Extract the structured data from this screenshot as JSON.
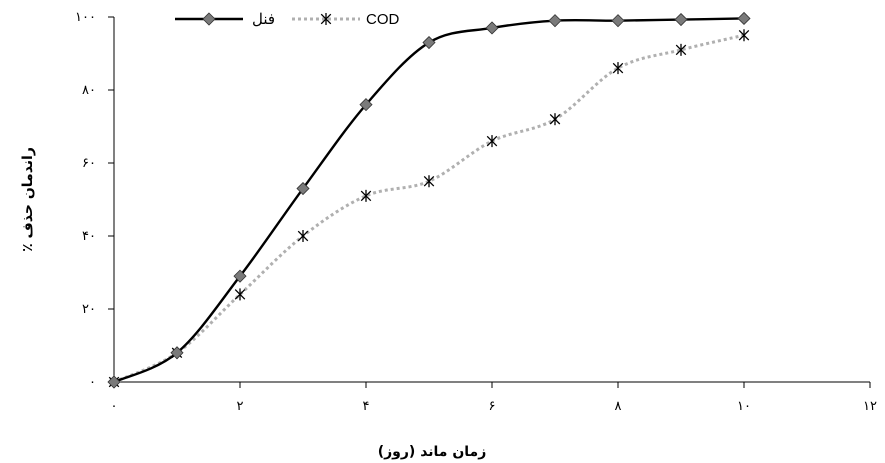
{
  "chart_data": {
    "type": "line",
    "title": "",
    "xlabel": "زمان ماند (روز)",
    "ylabel": "راندمان حذف ٪",
    "xlim": [
      0,
      12
    ],
    "ylim": [
      0,
      100
    ],
    "xticks": [
      0,
      2,
      4,
      6,
      8,
      10,
      12
    ],
    "yticks": [
      0,
      20,
      40,
      60,
      80,
      100
    ],
    "xtick_labels": [
      "۰",
      "۲",
      "۴",
      "۶",
      "۸",
      "۱۰",
      "۱۲"
    ],
    "ytick_labels": [
      "۰",
      "۲۰",
      "۴۰",
      "۶۰",
      "۸۰",
      "۱۰۰"
    ],
    "grid": false,
    "legend_position": "top-left",
    "series": [
      {
        "name": "فنل",
        "color": "#000000",
        "line_style": "solid",
        "marker": "diamond",
        "marker_color": "#7a7a7a",
        "x": [
          0,
          1,
          2,
          3,
          4,
          5,
          6,
          7,
          8,
          9,
          10
        ],
        "y": [
          0,
          8,
          29,
          53,
          76,
          93,
          97,
          99,
          99,
          99.3,
          99.6
        ]
      },
      {
        "name": "COD",
        "color": "#b0b0b0",
        "line_style": "dotted",
        "marker": "asterisk",
        "marker_color": "#000000",
        "x": [
          0,
          1,
          2,
          3,
          4,
          5,
          6,
          7,
          8,
          9,
          10
        ],
        "y": [
          0,
          8,
          24,
          40,
          51,
          55,
          66,
          72,
          86,
          91,
          95
        ]
      }
    ]
  }
}
